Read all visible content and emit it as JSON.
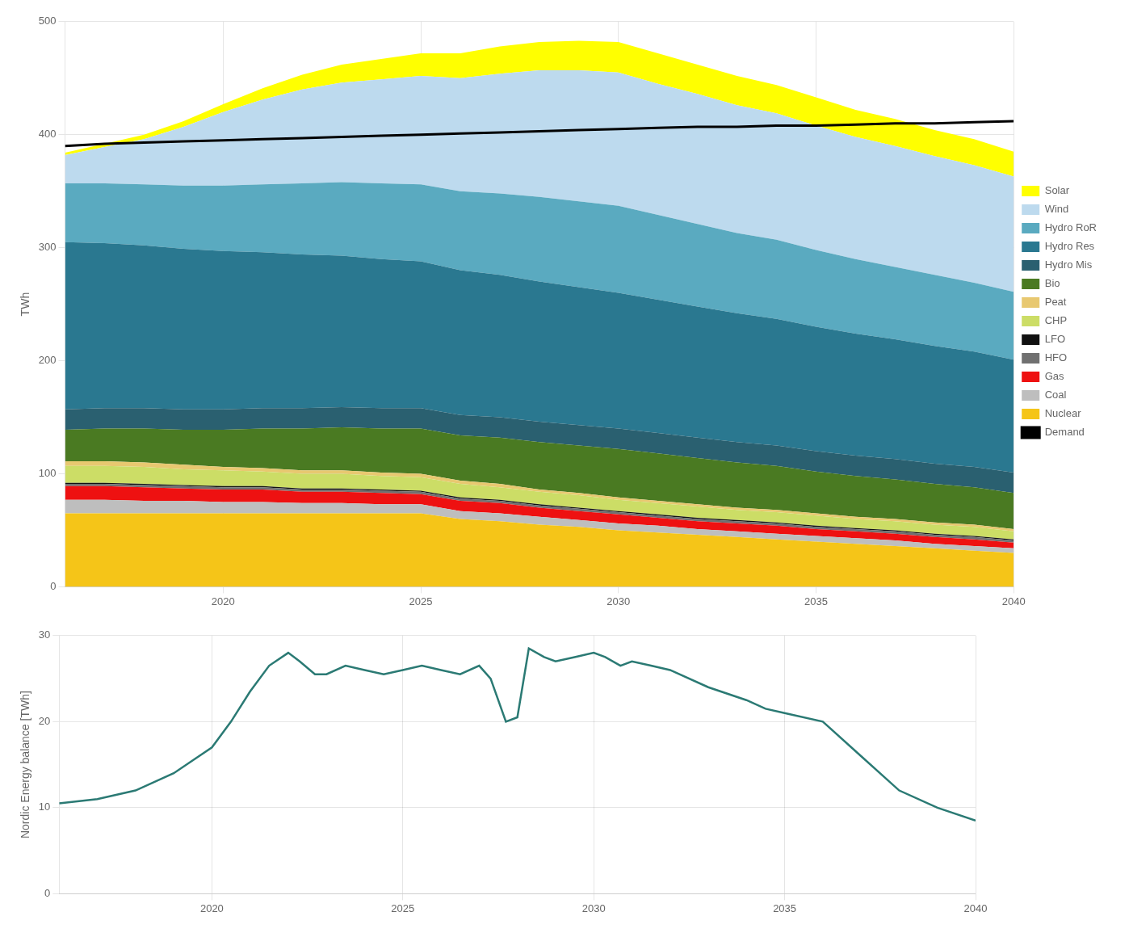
{
  "chart_data": [
    {
      "type": "area",
      "stacked": true,
      "grid": true,
      "legend": "right",
      "ylabel": "TWh",
      "x": [
        2016,
        2017,
        2018,
        2019,
        2020,
        2021,
        2022,
        2023,
        2024,
        2025,
        2026,
        2027,
        2028,
        2029,
        2030,
        2031,
        2032,
        2033,
        2034,
        2035,
        2036,
        2037,
        2038,
        2039,
        2040
      ],
      "xlim": [
        2016,
        2040
      ],
      "xticks": [
        2020,
        2025,
        2030,
        2035,
        2040
      ],
      "ylim": [
        0,
        500
      ],
      "yticks": [
        0,
        100,
        200,
        300,
        400,
        500
      ],
      "series": [
        {
          "name": "Nuclear",
          "color": "#F5C518",
          "values": [
            65,
            65,
            65,
            65,
            65,
            65,
            65,
            65,
            65,
            65,
            60,
            58,
            55,
            53,
            50,
            48,
            46,
            44,
            42,
            40,
            38,
            36,
            34,
            32,
            30
          ]
        },
        {
          "name": "Coal",
          "color": "#BEBEBE",
          "values": [
            12,
            12,
            11,
            11,
            10,
            10,
            9,
            9,
            8,
            8,
            7,
            7,
            7,
            6,
            6,
            6,
            5,
            5,
            5,
            5,
            5,
            5,
            4,
            4,
            4
          ]
        },
        {
          "name": "Gas",
          "color": "#EE1111",
          "values": [
            12,
            12,
            12,
            11,
            11,
            11,
            10,
            10,
            10,
            9,
            9,
            9,
            8,
            8,
            8,
            7,
            7,
            7,
            7,
            6,
            6,
            6,
            6,
            6,
            5
          ]
        },
        {
          "name": "HFO",
          "color": "#707070",
          "values": [
            2,
            2,
            2,
            2,
            2,
            2,
            2,
            2,
            2,
            2,
            2,
            2,
            2,
            2,
            2,
            2,
            2,
            2,
            2,
            2,
            2,
            2,
            2,
            2,
            2
          ]
        },
        {
          "name": "LFO",
          "color": "#111111",
          "values": [
            1,
            1,
            1,
            1,
            1,
            1,
            1,
            1,
            1,
            1,
            1,
            1,
            1,
            1,
            1,
            1,
            1,
            1,
            1,
            1,
            1,
            1,
            1,
            1,
            1
          ]
        },
        {
          "name": "CHP",
          "color": "#CCDD66",
          "values": [
            15,
            15,
            15,
            14,
            14,
            13,
            13,
            13,
            12,
            12,
            12,
            11,
            11,
            11,
            10,
            10,
            10,
            9,
            9,
            9,
            8,
            8,
            8,
            8,
            7
          ]
        },
        {
          "name": "Peat",
          "color": "#E8C870",
          "values": [
            4,
            4,
            4,
            4,
            3,
            3,
            3,
            3,
            3,
            3,
            3,
            3,
            2,
            2,
            2,
            2,
            2,
            2,
            2,
            2,
            2,
            2,
            2,
            2,
            2
          ]
        },
        {
          "name": "Bio",
          "color": "#4A7A22",
          "values": [
            28,
            29,
            30,
            31,
            33,
            35,
            37,
            38,
            39,
            40,
            40,
            41,
            42,
            42,
            43,
            42,
            41,
            40,
            39,
            37,
            36,
            35,
            34,
            33,
            32
          ]
        },
        {
          "name": "Hydro Mis",
          "color": "#2A6070",
          "values": [
            18,
            18,
            18,
            18,
            18,
            18,
            18,
            18,
            18,
            18,
            18,
            18,
            18,
            18,
            18,
            18,
            18,
            18,
            18,
            18,
            18,
            18,
            18,
            18,
            18
          ]
        },
        {
          "name": "Hydro Res",
          "color": "#2A7890",
          "values": [
            148,
            146,
            144,
            142,
            140,
            138,
            136,
            134,
            132,
            130,
            128,
            126,
            124,
            122,
            120,
            118,
            116,
            114,
            112,
            110,
            108,
            106,
            104,
            102,
            100
          ]
        },
        {
          "name": "Hydro RoR",
          "color": "#5AAAC0",
          "values": [
            52,
            53,
            54,
            56,
            58,
            60,
            63,
            65,
            67,
            68,
            70,
            72,
            75,
            76,
            77,
            75,
            73,
            71,
            70,
            68,
            66,
            64,
            63,
            61,
            60
          ]
        },
        {
          "name": "Wind",
          "color": "#BDDAEE",
          "values": [
            25,
            32,
            40,
            52,
            65,
            75,
            83,
            88,
            92,
            96,
            100,
            106,
            112,
            116,
            118,
            116,
            115,
            113,
            112,
            110,
            108,
            107,
            105,
            104,
            102
          ]
        },
        {
          "name": "Solar",
          "color": "#FFFF00",
          "values": [
            2,
            3,
            4,
            5,
            7,
            10,
            13,
            16,
            18,
            20,
            22,
            24,
            25,
            26,
            27,
            27,
            26,
            26,
            25,
            25,
            24,
            24,
            23,
            23,
            22
          ]
        },
        {
          "name": "Demand",
          "type": "line",
          "color": "#000000",
          "values": [
            390,
            392,
            393,
            394,
            395,
            396,
            397,
            398,
            399,
            400,
            401,
            402,
            403,
            404,
            405,
            406,
            407,
            407,
            408,
            408,
            409,
            410,
            410,
            411,
            412
          ]
        }
      ]
    },
    {
      "type": "line",
      "grid": true,
      "ylabel": "Nordic Energy balance [TWh]",
      "x": [
        2016,
        2017,
        2018,
        2019,
        2019.5,
        2020,
        2020.5,
        2021,
        2021.5,
        2022,
        2022.3,
        2022.7,
        2023,
        2023.5,
        2024,
        2024.5,
        2025,
        2025.5,
        2026,
        2026.5,
        2027,
        2027.3,
        2027.7,
        2028,
        2028.3,
        2028.7,
        2029,
        2029.5,
        2030,
        2030.3,
        2030.7,
        2031,
        2031.5,
        2032,
        2033,
        2034,
        2034.5,
        2035,
        2036,
        2037,
        2038,
        2039,
        2040
      ],
      "values": [
        10.5,
        11.0,
        12.0,
        14.0,
        15.5,
        17.0,
        20.0,
        23.5,
        26.5,
        28.0,
        27.0,
        25.5,
        25.5,
        26.5,
        26.0,
        25.5,
        26.0,
        26.5,
        26.0,
        25.5,
        26.5,
        25.0,
        20.0,
        20.5,
        28.5,
        27.5,
        27.0,
        27.5,
        28.0,
        27.5,
        26.5,
        27.0,
        26.5,
        26.0,
        24.0,
        22.5,
        21.5,
        21.0,
        20.0,
        16.0,
        12.0,
        10.0,
        8.5
      ],
      "color": "#2B7A74",
      "xlim": [
        2016,
        2040
      ],
      "xticks": [
        2020,
        2025,
        2030,
        2035,
        2040
      ],
      "ylim": [
        0,
        30
      ],
      "yticks": [
        0,
        10,
        20,
        30
      ]
    }
  ]
}
